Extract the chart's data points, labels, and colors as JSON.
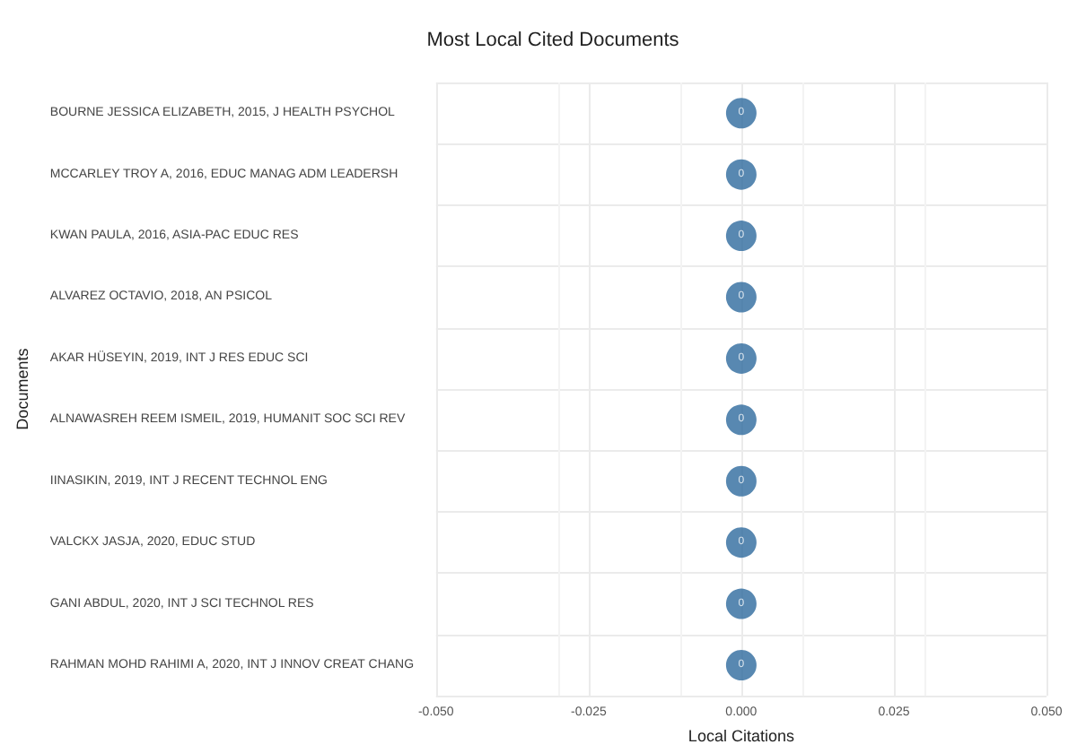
{
  "chart_data": {
    "type": "lollipop",
    "title": "Most Local Cited Documents",
    "xlabel": "Local Citations",
    "ylabel": "Documents",
    "orientation": "horizontal",
    "categories": [
      "BOURNE JESSICA ELIZABETH, 2015, J HEALTH PSYCHOL",
      "MCCARLEY TROY A, 2016, EDUC MANAG ADM LEADERSH",
      "KWAN PAULA, 2016, ASIA-PAC EDUC RES",
      "ALVAREZ OCTAVIO, 2018, AN PSICOL",
      "AKAR HÜSEYIN, 2019, INT J RES EDUC SCI",
      "ALNAWASREH REEM ISMEIL, 2019, HUMANIT SOC SCI REV",
      "IINASIKIN, 2019, INT J RECENT TECHNOL ENG",
      "VALCKX JASJA, 2020, EDUC STUD",
      "GANI ABDUL, 2020, INT J SCI TECHNOL RES",
      "RAHMAN MOHD RAHIMI A, 2020, INT J INNOV CREAT CHANG"
    ],
    "values": [
      0,
      0,
      0,
      0,
      0,
      0,
      0,
      0,
      0,
      0
    ],
    "color": "#2e6a9e",
    "xlim": [
      -0.05,
      0.05
    ],
    "xticks": [
      {
        "value": -0.05,
        "label": "-0.050"
      },
      {
        "value": -0.025,
        "label": "-0.025"
      },
      {
        "value": 0,
        "label": "0.000"
      },
      {
        "value": 0.025,
        "label": "0.025"
      },
      {
        "value": 0.05,
        "label": "0.050"
      }
    ],
    "grid": true,
    "marker": "circle",
    "data_labels": true
  }
}
